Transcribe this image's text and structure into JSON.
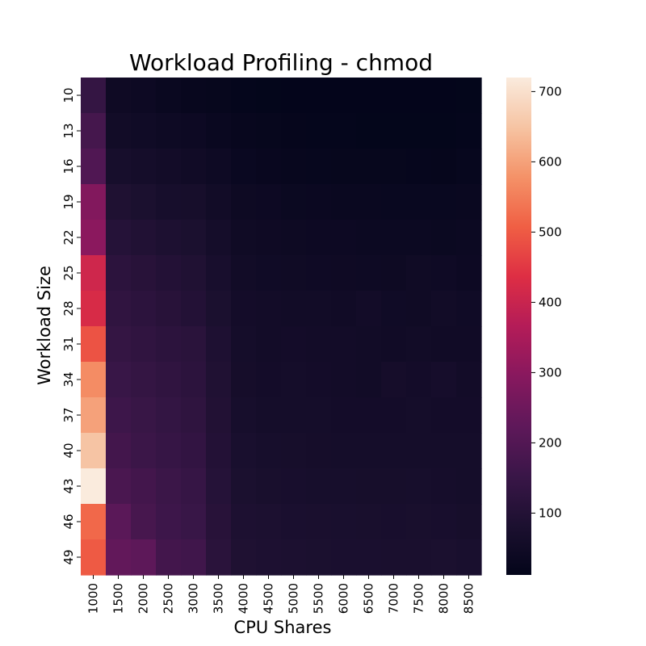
{
  "chart_data": {
    "type": "heatmap",
    "title": "Workload Profiling - chmod",
    "xlabel": "CPU Shares",
    "ylabel": "Workload Size",
    "x_categories": [
      "1000",
      "1500",
      "2000",
      "2500",
      "3000",
      "3500",
      "4000",
      "4500",
      "5000",
      "5500",
      "6000",
      "6500",
      "7000",
      "7500",
      "8000",
      "8500"
    ],
    "y_categories": [
      "10",
      "13",
      "16",
      "19",
      "22",
      "25",
      "28",
      "31",
      "34",
      "37",
      "40",
      "43",
      "46",
      "49"
    ],
    "colorbar": {
      "min": 12,
      "max": 720,
      "ticks": [
        100,
        200,
        300,
        400,
        500,
        600,
        700
      ]
    },
    "colormap": "rocket",
    "values": [
      [
        140,
        45,
        40,
        32,
        25,
        22,
        18,
        16,
        15,
        15,
        14,
        14,
        14,
        14,
        14,
        16
      ],
      [
        175,
        55,
        50,
        44,
        40,
        32,
        26,
        22,
        20,
        18,
        18,
        16,
        16,
        16,
        16,
        18
      ],
      [
        195,
        70,
        62,
        56,
        52,
        44,
        33,
        28,
        25,
        24,
        23,
        22,
        22,
        21,
        20,
        24
      ],
      [
        285,
        90,
        80,
        70,
        68,
        55,
        42,
        40,
        36,
        34,
        32,
        32,
        30,
        30,
        30,
        32
      ],
      [
        300,
        105,
        95,
        85,
        80,
        62,
        48,
        45,
        42,
        40,
        40,
        38,
        38,
        38,
        36,
        38
      ],
      [
        410,
        120,
        110,
        100,
        92,
        72,
        55,
        50,
        48,
        46,
        45,
        44,
        42,
        48,
        46,
        40
      ],
      [
        425,
        130,
        120,
        110,
        100,
        80,
        60,
        56,
        55,
        54,
        52,
        58,
        50,
        48,
        55,
        50
      ],
      [
        490,
        140,
        130,
        120,
        115,
        88,
        62,
        58,
        60,
        58,
        56,
        54,
        52,
        54,
        52,
        52
      ],
      [
        570,
        150,
        140,
        130,
        120,
        92,
        65,
        60,
        62,
        60,
        58,
        55,
        65,
        60,
        66,
        58
      ],
      [
        600,
        160,
        148,
        138,
        128,
        96,
        70,
        64,
        64,
        62,
        60,
        60,
        60,
        62,
        60,
        60
      ],
      [
        650,
        170,
        155,
        145,
        135,
        100,
        75,
        70,
        68,
        65,
        64,
        62,
        62,
        64,
        62,
        62
      ],
      [
        720,
        185,
        170,
        155,
        145,
        105,
        80,
        74,
        72,
        70,
        70,
        68,
        68,
        70,
        66,
        64
      ],
      [
        520,
        215,
        178,
        160,
        150,
        110,
        85,
        82,
        78,
        76,
        75,
        74,
        72,
        74,
        72,
        68
      ],
      [
        500,
        230,
        220,
        170,
        165,
        115,
        90,
        85,
        82,
        80,
        78,
        78,
        76,
        76,
        80,
        75
      ]
    ]
  }
}
